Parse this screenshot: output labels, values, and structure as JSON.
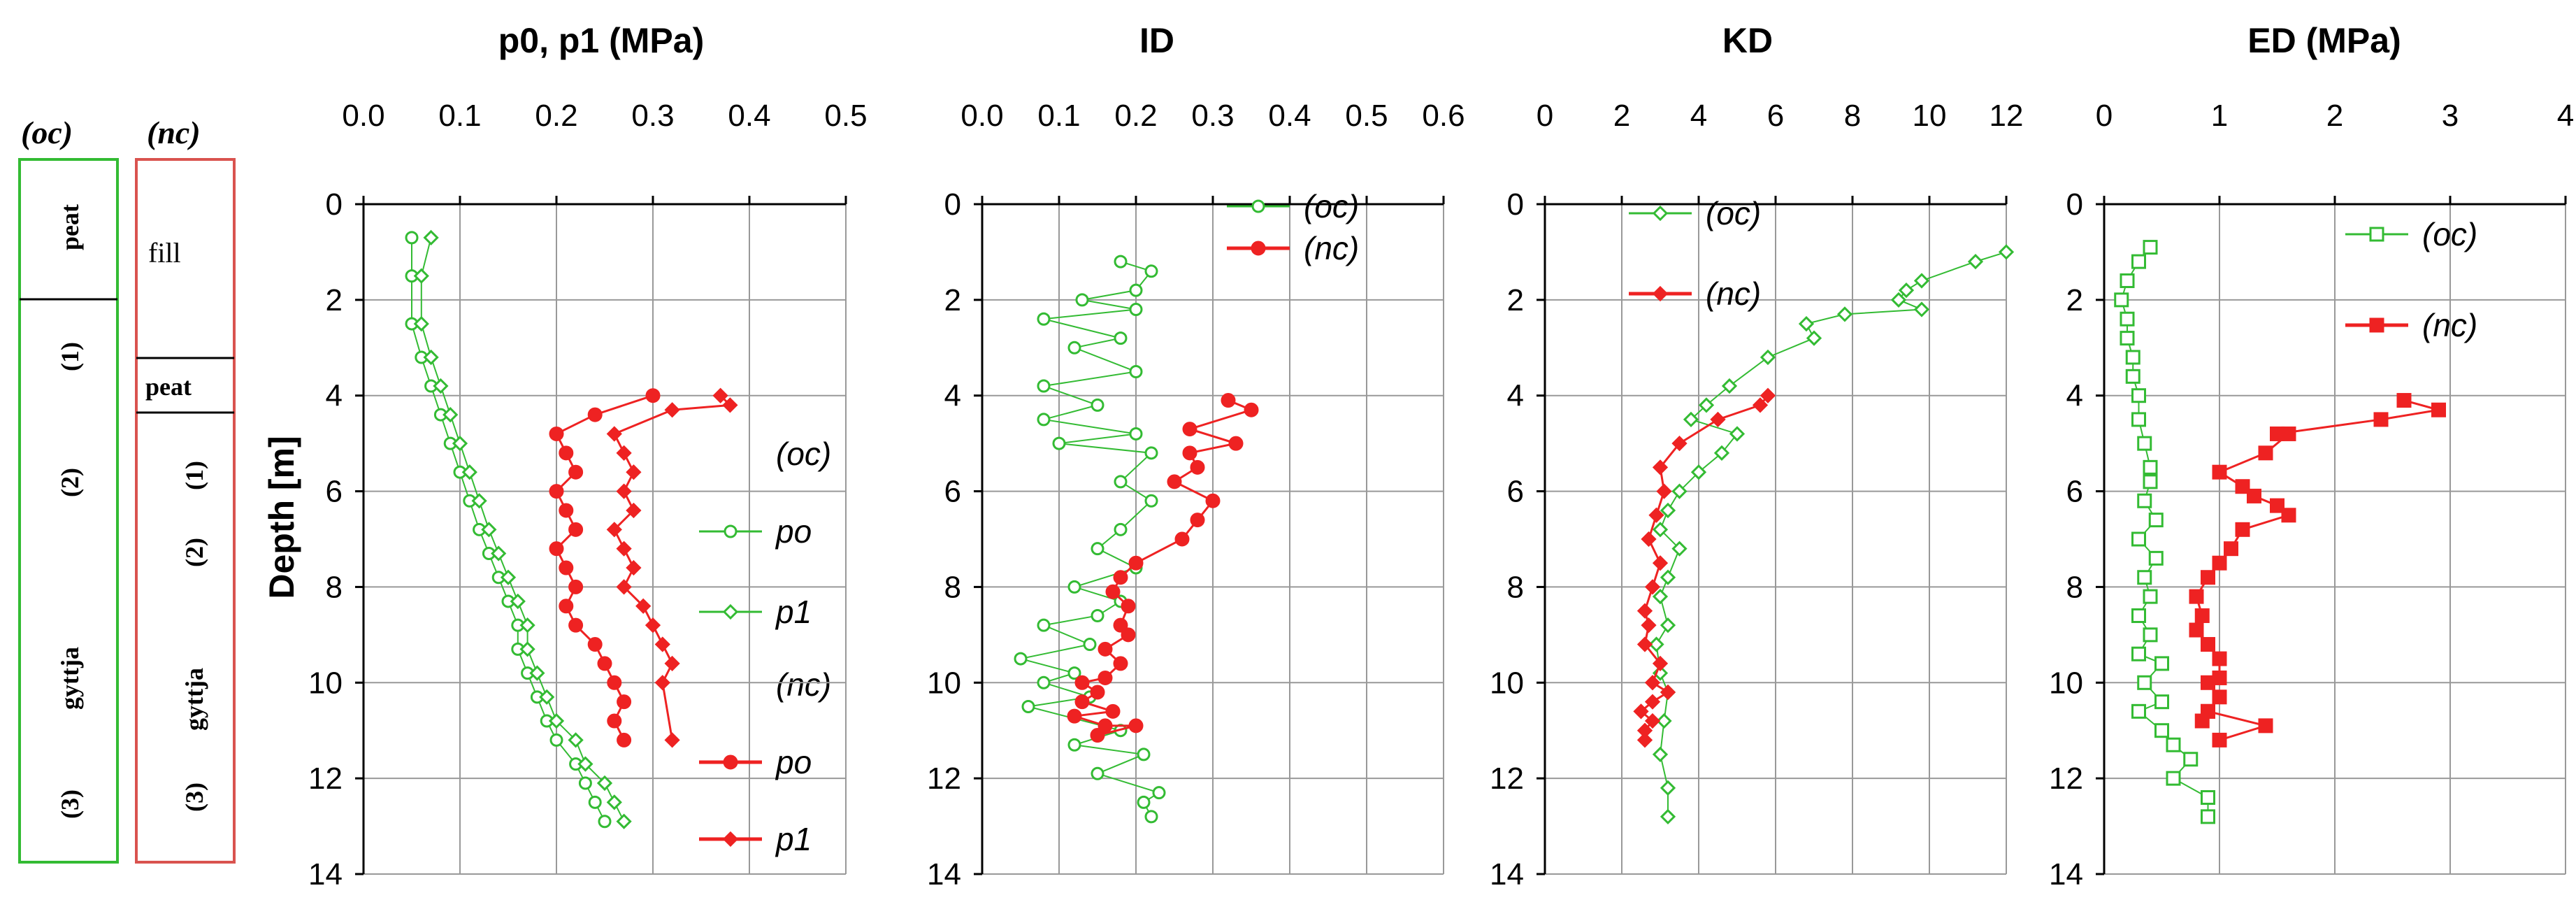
{
  "strata": {
    "oc": {
      "header": "(oc)",
      "border_color": "#33bb33",
      "labels": [
        "peat",
        "(1)",
        "(2)",
        "gyttja",
        "(3)"
      ]
    },
    "nc": {
      "header": "(nc)",
      "border_color": "#d9534f",
      "labels": [
        "fill",
        "peat",
        "(1)",
        "(2)",
        "gyttja",
        "(3)"
      ]
    }
  },
  "ylabel": "Depth [m]",
  "colors": {
    "oc": "#33bb33",
    "nc": "#ee2222",
    "grid": "#999999"
  },
  "chart_data": [
    {
      "type": "scatter",
      "title": "p0, p1 (MPa)",
      "xlim": [
        0,
        0.5
      ],
      "xticks": [
        "0.0",
        "0.1",
        "0.2",
        "0.3",
        "0.4",
        "0.5"
      ],
      "ylim": [
        0,
        14
      ],
      "yticks": [
        "0",
        "2",
        "4",
        "6",
        "8",
        "10",
        "12",
        "14"
      ],
      "ylabel": "Depth [m]",
      "grid": true,
      "legend_headers": [
        "(oc)",
        "(nc)"
      ],
      "series": [
        {
          "name": "po",
          "group": "oc",
          "marker": "circle-open",
          "color": "#33bb33",
          "x": [
            0.05,
            0.05,
            0.05,
            0.06,
            0.07,
            0.08,
            0.09,
            0.1,
            0.11,
            0.12,
            0.13,
            0.14,
            0.15,
            0.16,
            0.16,
            0.17,
            0.18,
            0.19,
            0.2,
            0.22,
            0.23,
            0.24,
            0.25
          ],
          "y": [
            0.7,
            1.5,
            2.5,
            3.2,
            3.8,
            4.4,
            5.0,
            5.6,
            6.2,
            6.8,
            7.3,
            7.8,
            8.3,
            8.8,
            9.3,
            9.8,
            10.3,
            10.8,
            11.2,
            11.7,
            12.1,
            12.5,
            12.9
          ]
        },
        {
          "name": "p1",
          "group": "oc",
          "marker": "diamond-open",
          "color": "#33bb33",
          "x": [
            0.07,
            0.06,
            0.06,
            0.07,
            0.08,
            0.09,
            0.1,
            0.11,
            0.12,
            0.13,
            0.14,
            0.15,
            0.16,
            0.17,
            0.17,
            0.18,
            0.19,
            0.2,
            0.22,
            0.23,
            0.25,
            0.26,
            0.27
          ],
          "y": [
            0.7,
            1.5,
            2.5,
            3.2,
            3.8,
            4.4,
            5.0,
            5.6,
            6.2,
            6.8,
            7.3,
            7.8,
            8.3,
            8.8,
            9.3,
            9.8,
            10.3,
            10.8,
            11.2,
            11.7,
            12.1,
            12.5,
            12.9
          ]
        },
        {
          "name": "po",
          "group": "nc",
          "marker": "circle-filled",
          "color": "#ee2222",
          "x": [
            0.3,
            0.24,
            0.2,
            0.21,
            0.22,
            0.2,
            0.21,
            0.22,
            0.2,
            0.21,
            0.22,
            0.21,
            0.22,
            0.24,
            0.25,
            0.26,
            0.27,
            0.26,
            0.27
          ],
          "y": [
            4.0,
            4.4,
            4.8,
            5.2,
            5.6,
            6.0,
            6.4,
            6.8,
            7.2,
            7.6,
            8.0,
            8.4,
            8.8,
            9.2,
            9.6,
            10.0,
            10.4,
            10.8,
            11.2
          ]
        },
        {
          "name": "p1",
          "group": "nc",
          "marker": "diamond-filled",
          "color": "#ee2222",
          "x": [
            0.37,
            0.38,
            0.32,
            0.26,
            0.27,
            0.28,
            0.27,
            0.28,
            0.26,
            0.27,
            0.28,
            0.27,
            0.29,
            0.3,
            0.31,
            0.32,
            0.31,
            0.32
          ],
          "y": [
            4.0,
            4.2,
            4.3,
            4.8,
            5.2,
            5.6,
            6.0,
            6.4,
            6.8,
            7.2,
            7.6,
            8.0,
            8.4,
            8.8,
            9.2,
            9.6,
            10.0,
            11.2
          ]
        }
      ]
    },
    {
      "type": "line",
      "title": "ID",
      "xlim": [
        0,
        0.6
      ],
      "xticks": [
        "0.0",
        "0.1",
        "0.2",
        "0.3",
        "0.4",
        "0.5",
        "0.6"
      ],
      "ylim": [
        0,
        14
      ],
      "yticks": [
        "0",
        "2",
        "4",
        "6",
        "8",
        "10",
        "12",
        "14"
      ],
      "grid": true,
      "series": [
        {
          "name": "(oc)",
          "marker": "circle-open",
          "color": "#33bb33",
          "x": [
            0.18,
            0.22,
            0.2,
            0.13,
            0.2,
            0.08,
            0.18,
            0.12,
            0.2,
            0.08,
            0.15,
            0.08,
            0.2,
            0.1,
            0.22,
            0.18,
            0.22,
            0.18,
            0.15,
            0.2,
            0.12,
            0.18,
            0.15,
            0.08,
            0.14,
            0.05,
            0.12,
            0.08,
            0.14,
            0.06,
            0.18,
            0.12,
            0.21,
            0.15,
            0.23,
            0.21,
            0.22
          ],
          "y": [
            1.2,
            1.4,
            1.8,
            2.0,
            2.2,
            2.4,
            2.8,
            3.0,
            3.5,
            3.8,
            4.2,
            4.5,
            4.8,
            5.0,
            5.2,
            5.8,
            6.2,
            6.8,
            7.2,
            7.6,
            8.0,
            8.3,
            8.6,
            8.8,
            9.2,
            9.5,
            9.8,
            10.0,
            10.3,
            10.5,
            11.0,
            11.3,
            11.5,
            11.9,
            12.3,
            12.5,
            12.8
          ]
        },
        {
          "name": "(nc)",
          "marker": "circle-filled",
          "color": "#ee2222",
          "x": [
            0.32,
            0.35,
            0.27,
            0.33,
            0.27,
            0.28,
            0.25,
            0.3,
            0.28,
            0.26,
            0.2,
            0.18,
            0.17,
            0.19,
            0.18,
            0.19,
            0.16,
            0.18,
            0.16,
            0.13,
            0.15,
            0.13,
            0.17,
            0.12,
            0.16,
            0.2,
            0.15
          ],
          "y": [
            4.1,
            4.3,
            4.7,
            5.0,
            5.2,
            5.5,
            5.8,
            6.2,
            6.6,
            7.0,
            7.5,
            7.8,
            8.1,
            8.4,
            8.8,
            9.0,
            9.3,
            9.6,
            9.9,
            10.0,
            10.2,
            10.4,
            10.6,
            10.7,
            10.9,
            10.9,
            11.1
          ]
        }
      ]
    },
    {
      "type": "line",
      "title": "KD",
      "xlim": [
        0,
        12
      ],
      "xticks": [
        "0",
        "2",
        "4",
        "6",
        "8",
        "10",
        "12"
      ],
      "ylim": [
        0,
        14
      ],
      "yticks": [
        "0",
        "2",
        "4",
        "6",
        "8",
        "10",
        "12",
        "14"
      ],
      "grid": true,
      "series": [
        {
          "name": "(oc)",
          "marker": "diamond-open",
          "color": "#33bb33",
          "x": [
            12.0,
            11.2,
            9.8,
            9.4,
            9.2,
            9.8,
            7.8,
            6.8,
            7.0,
            5.8,
            4.8,
            4.2,
            3.8,
            5.0,
            4.6,
            4.0,
            3.5,
            3.2,
            3.0,
            3.5,
            3.2,
            3.0,
            3.2,
            2.9,
            3.0,
            3.2,
            3.1,
            3.0,
            3.2,
            3.2
          ],
          "y": [
            1.0,
            1.2,
            1.6,
            1.8,
            2.0,
            2.2,
            2.3,
            2.5,
            2.8,
            3.2,
            3.8,
            4.2,
            4.5,
            4.8,
            5.2,
            5.6,
            6.0,
            6.4,
            6.8,
            7.2,
            7.8,
            8.2,
            8.8,
            9.2,
            9.8,
            10.2,
            10.8,
            11.5,
            12.2,
            12.8
          ]
        },
        {
          "name": "(nc)",
          "marker": "diamond-filled",
          "color": "#ee2222",
          "x": [
            5.8,
            5.6,
            4.5,
            3.5,
            3.0,
            3.1,
            2.9,
            2.7,
            3.0,
            2.8,
            2.6,
            2.7,
            2.6,
            3.0,
            2.8,
            3.2,
            2.8,
            2.5,
            2.8,
            2.6,
            2.6
          ],
          "y": [
            4.0,
            4.2,
            4.5,
            5.0,
            5.5,
            6.0,
            6.5,
            7.0,
            7.5,
            8.0,
            8.5,
            8.8,
            9.2,
            9.6,
            10.0,
            10.2,
            10.4,
            10.6,
            10.8,
            11.0,
            11.2
          ]
        }
      ]
    },
    {
      "type": "scatter",
      "title": "ED (MPa)",
      "xlim": [
        0,
        4
      ],
      "xticks": [
        "0",
        "1",
        "2",
        "3",
        "4"
      ],
      "ylim": [
        0,
        14
      ],
      "yticks": [
        "0",
        "2",
        "4",
        "6",
        "8",
        "10",
        "12",
        "14"
      ],
      "grid": true,
      "series": [
        {
          "name": "(oc)",
          "marker": "square-open",
          "color": "#33bb33",
          "x": [
            0.4,
            0.3,
            0.2,
            0.15,
            0.2,
            0.2,
            0.25,
            0.25,
            0.3,
            0.3,
            0.35,
            0.4,
            0.4,
            0.35,
            0.45,
            0.3,
            0.45,
            0.35,
            0.4,
            0.3,
            0.4,
            0.3,
            0.5,
            0.35,
            0.5,
            0.3,
            0.5,
            0.6,
            0.75,
            0.6,
            0.9,
            0.9
          ],
          "y": [
            0.9,
            1.2,
            1.6,
            2.0,
            2.4,
            2.8,
            3.2,
            3.6,
            4.0,
            4.5,
            5.0,
            5.5,
            5.8,
            6.2,
            6.6,
            7.0,
            7.4,
            7.8,
            8.2,
            8.6,
            9.0,
            9.4,
            9.6,
            10.0,
            10.4,
            10.6,
            11.0,
            11.3,
            11.6,
            12.0,
            12.4,
            12.8
          ]
        },
        {
          "name": "(nc)",
          "marker": "square-filled",
          "color": "#ee2222",
          "x": [
            2.6,
            2.9,
            2.4,
            1.5,
            1.6,
            1.4,
            1.0,
            1.2,
            1.3,
            1.5,
            1.6,
            1.2,
            1.1,
            1.0,
            0.9,
            0.8,
            0.85,
            0.8,
            0.9,
            1.0,
            1.0,
            0.9,
            1.0,
            0.9,
            0.85,
            0.9,
            1.4,
            1.0
          ],
          "y": [
            4.1,
            4.3,
            4.5,
            4.8,
            4.8,
            5.2,
            5.6,
            5.9,
            6.1,
            6.3,
            6.5,
            6.8,
            7.2,
            7.5,
            7.8,
            8.2,
            8.6,
            8.9,
            9.2,
            9.5,
            9.9,
            10.0,
            10.3,
            10.6,
            10.8,
            10.6,
            10.9,
            11.2
          ]
        }
      ]
    }
  ]
}
